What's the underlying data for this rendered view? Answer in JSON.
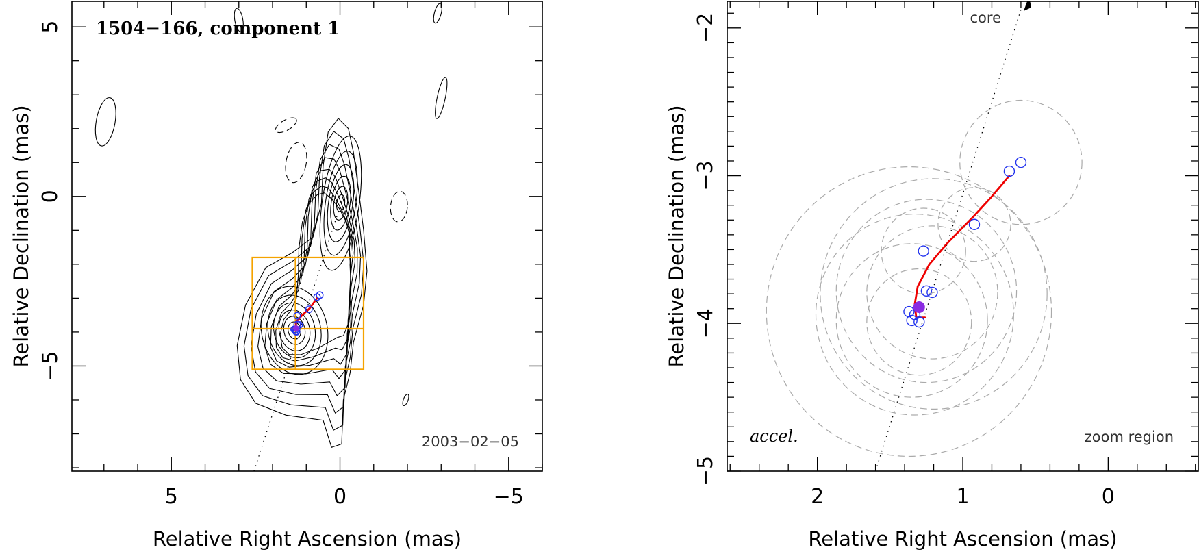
{
  "chart_data": [
    {
      "type": "scatter",
      "panel": "left",
      "title": "1504−166, component 1",
      "epoch": "2003−02−05",
      "xlabel": "Relative Right Ascension (mas)",
      "ylabel": "Relative Declination (mas)",
      "xlim": [
        7.95,
        -6.0
      ],
      "ylim": [
        -8.1,
        5.75
      ],
      "xticks": [
        {
          "value": 5,
          "label": "5"
        },
        {
          "value": 0,
          "label": "0"
        },
        {
          "value": -5,
          "label": "−5"
        }
      ],
      "yticks": [
        {
          "value": 5,
          "label": "5"
        },
        {
          "value": 0,
          "label": "0"
        },
        {
          "value": -5,
          "label": "−5"
        }
      ],
      "zoom_box": {
        "x_range": [
          -0.7,
          2.6
        ],
        "y_range": [
          -5.1,
          -1.8
        ],
        "center": [
          1.32,
          -3.9
        ]
      },
      "ridge_line": [
        [
          2.55,
          -8.1
        ],
        [
          -0.1,
          0.0
        ]
      ],
      "component_positions": [
        [
          1.27,
          -3.52
        ],
        [
          1.36,
          -3.92
        ],
        [
          1.31,
          -3.98
        ],
        [
          1.33,
          -3.94
        ],
        [
          0.92,
          -3.33
        ],
        [
          0.68,
          -2.97
        ],
        [
          0.6,
          -2.91
        ],
        [
          1.27,
          -3.78
        ],
        [
          1.21,
          -3.79
        ],
        [
          1.29,
          -3.99
        ]
      ],
      "mean_position": [
        1.3,
        -3.89
      ],
      "accel_track": [
        [
          1.31,
          -3.96
        ],
        [
          1.3,
          -3.7
        ],
        [
          1.12,
          -3.5
        ],
        [
          0.9,
          -3.3
        ],
        [
          0.68,
          -3.0
        ]
      ]
    },
    {
      "type": "scatter",
      "panel": "right",
      "core_label": "core",
      "fit_label": "accel.",
      "region_label": "zoom region",
      "xlabel": "Relative Right Ascension (mas)",
      "ylabel": "Relative Declination (mas)",
      "xlim": [
        2.62,
        -0.62
      ],
      "ylim": [
        -5.0,
        -1.82
      ],
      "xticks": [
        {
          "value": 2,
          "label": "2"
        },
        {
          "value": 1,
          "label": "1"
        },
        {
          "value": 0,
          "label": "0"
        }
      ],
      "yticks": [
        {
          "value": -2,
          "label": "−2"
        },
        {
          "value": -3,
          "label": "−3"
        },
        {
          "value": -4,
          "label": "−4"
        },
        {
          "value": -5,
          "label": "−5"
        }
      ],
      "component_positions": [
        {
          "x": 0.68,
          "y": -2.97
        },
        {
          "x": 0.6,
          "y": -2.91
        },
        {
          "x": 0.92,
          "y": -3.33
        },
        {
          "x": 1.27,
          "y": -3.51
        },
        {
          "x": 1.25,
          "y": -3.78
        },
        {
          "x": 1.21,
          "y": -3.79
        },
        {
          "x": 1.37,
          "y": -3.92
        },
        {
          "x": 1.35,
          "y": -3.98
        },
        {
          "x": 1.3,
          "y": -3.99
        },
        {
          "x": 1.33,
          "y": -3.94
        }
      ],
      "mean_position": {
        "x": 1.3,
        "y": -3.89
      },
      "error_circles": [
        {
          "x": 0.6,
          "y": -2.91,
          "r": 0.42
        },
        {
          "x": 1.25,
          "y": -3.78,
          "r": 0.62
        },
        {
          "x": 1.37,
          "y": -3.92,
          "r": 0.98
        },
        {
          "x": 1.2,
          "y": -3.8,
          "r": 0.78
        },
        {
          "x": 1.33,
          "y": -3.94,
          "r": 0.68
        },
        {
          "x": 1.35,
          "y": -3.98,
          "r": 0.52
        },
        {
          "x": 1.21,
          "y": -3.79,
          "r": 0.45
        },
        {
          "x": 1.3,
          "y": -3.99,
          "r": 0.36
        },
        {
          "x": 1.27,
          "y": -3.51,
          "r": 0.29
        },
        {
          "x": 0.92,
          "y": -3.33,
          "r": 0.25
        }
      ],
      "accel_track": [
        {
          "x": 1.26,
          "y": -3.96
        },
        {
          "x": 1.32,
          "y": -3.96
        },
        {
          "x": 1.33,
          "y": -3.87
        },
        {
          "x": 1.31,
          "y": -3.75
        },
        {
          "x": 1.23,
          "y": -3.6
        },
        {
          "x": 1.1,
          "y": -3.45
        },
        {
          "x": 0.93,
          "y": -3.28
        },
        {
          "x": 0.8,
          "y": -3.14
        },
        {
          "x": 0.68,
          "y": -3.0
        }
      ],
      "ridge_line": [
        {
          "x": 1.6,
          "y": -5.0
        },
        {
          "x": 0.6,
          "y": -1.82
        }
      ]
    }
  ]
}
